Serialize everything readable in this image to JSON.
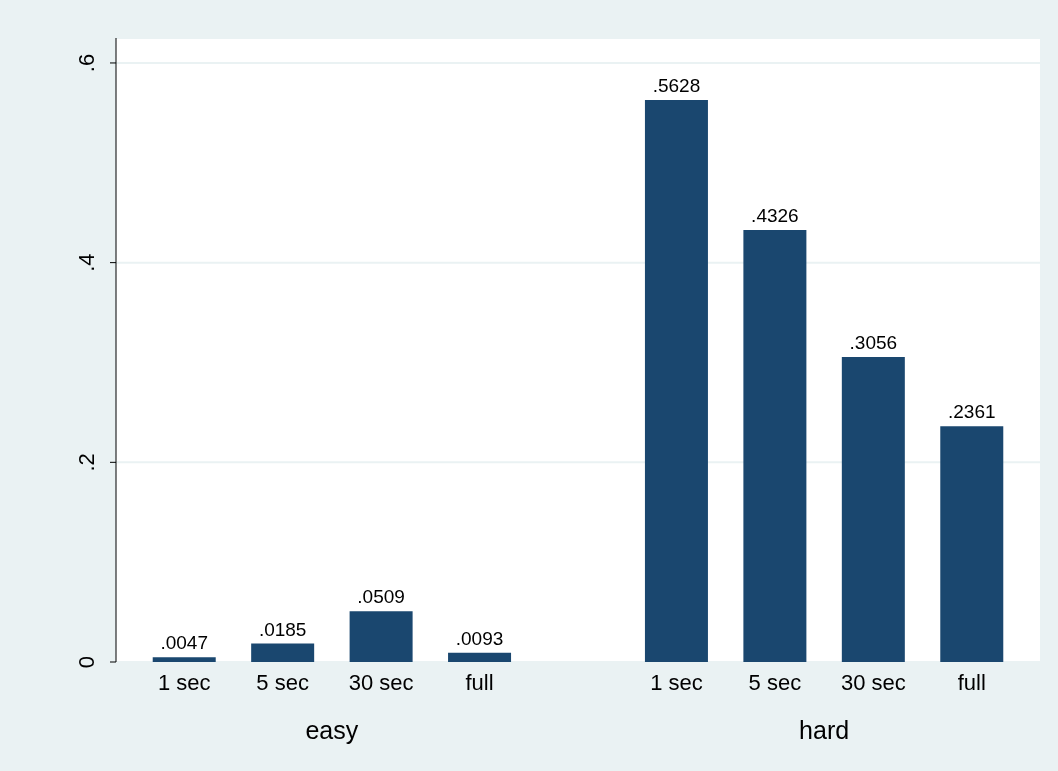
{
  "chart_data": {
    "type": "bar",
    "categories": [
      "1 sec",
      "5 sec",
      "30 sec",
      "full",
      null,
      "1 sec",
      "5 sec",
      "30 sec",
      "full"
    ],
    "values": [
      0.0047,
      0.0185,
      0.0509,
      0.0093,
      null,
      0.5628,
      0.4326,
      0.3056,
      0.2361
    ],
    "value_labels": [
      ".0047",
      ".0185",
      ".0509",
      ".0093",
      null,
      ".5628",
      ".4326",
      ".3056",
      ".2361"
    ],
    "color": "#1a476f",
    "annotations": [
      "easy",
      "hard"
    ],
    "ylim": [
      0,
      0.625
    ],
    "yticks": [
      {
        "value": 0,
        "label": "0"
      },
      {
        "value": 0.2,
        "label": ".2"
      },
      {
        "value": 0.4,
        "label": ".4"
      },
      {
        "value": 0.6,
        "label": ".6"
      }
    ],
    "grid": "y",
    "legend": false
  }
}
